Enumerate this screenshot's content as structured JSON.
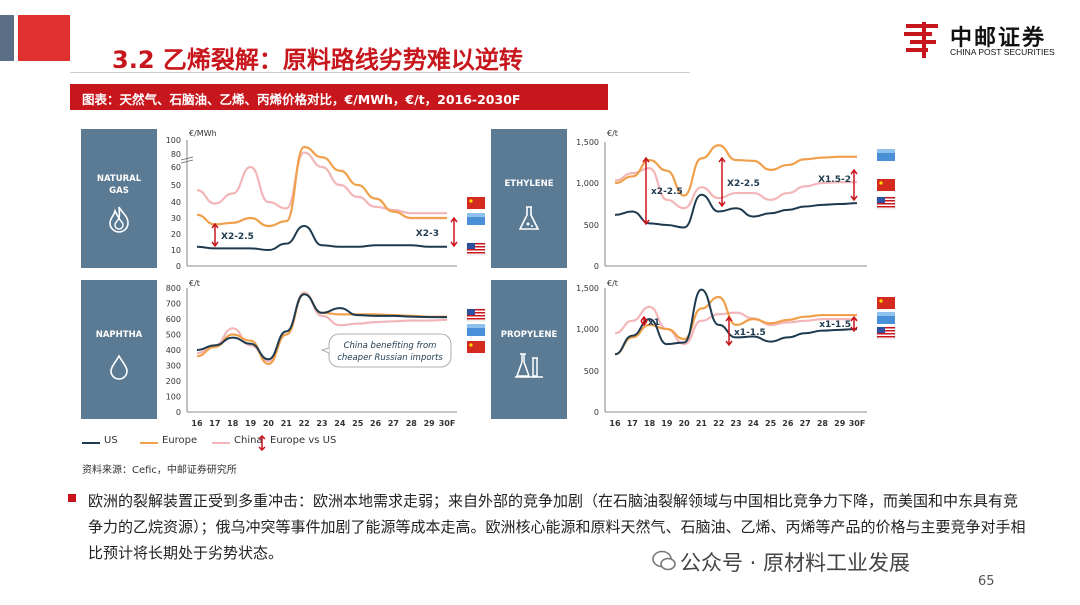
{
  "header": {
    "title": "3.2 乙烯裂解：原料路线劣势难以逆转",
    "logo_cn": "中邮证券",
    "logo_en": "CHINA POST SECURITIES"
  },
  "caption": "图表：天然气、石脑油、乙烯、丙烯价格对比，€/MWh，€/t，2016-2030F",
  "colors": {
    "us": "#1e3a4f",
    "europe": "#f0a04b",
    "china": "#f2b6b8",
    "accent_red": "#c8161d",
    "panel": "#5b7a94"
  },
  "legend": {
    "us": "US",
    "europe": "Europe",
    "china": "China",
    "range": "Europe vs US"
  },
  "panels": {
    "gas": {
      "label1": "NATURAL",
      "label2": "GAS",
      "icon": "flame-icon"
    },
    "ethylene": {
      "label": "ETHYLENE",
      "icon": "flask-icon"
    },
    "naphtha": {
      "label": "NAPHTHA",
      "icon": "droplet-icon"
    },
    "propylene": {
      "label": "PROPYLENE",
      "icon": "lab-flasks-icon"
    }
  },
  "chart_data": [
    {
      "type": "line",
      "title": "NATURAL GAS",
      "ylabel": "€/MWh",
      "yticks": [
        "0",
        "10",
        "20",
        "30",
        "40",
        "50",
        "60",
        "80",
        "100"
      ],
      "x": [
        16,
        17,
        18,
        19,
        20,
        21,
        22,
        23,
        24,
        25,
        26,
        27,
        28,
        29,
        30
      ],
      "series": [
        {
          "name": "US",
          "values": [
            12,
            11,
            11,
            11,
            10,
            14,
            25,
            13,
            12,
            12,
            13,
            13,
            13,
            12,
            12
          ]
        },
        {
          "name": "Europe",
          "values": [
            32,
            26,
            27,
            30,
            25,
            28,
            90,
            75,
            58,
            50,
            42,
            34,
            30,
            30,
            30
          ]
        },
        {
          "name": "China",
          "values": [
            47,
            39,
            45,
            60,
            40,
            36,
            82,
            60,
            50,
            43,
            37,
            35,
            33,
            33,
            33
          ]
        }
      ],
      "annotations": [
        "X2-2.5",
        "X2-3"
      ],
      "ylim": [
        0,
        100
      ]
    },
    {
      "type": "line",
      "title": "ETHYLENE",
      "ylabel": "€/t",
      "yticks": [
        "0",
        "500",
        "1,000",
        "1,500"
      ],
      "x": [
        16,
        17,
        18,
        19,
        20,
        21,
        22,
        23,
        24,
        25,
        26,
        27,
        28,
        29,
        30
      ],
      "series": [
        {
          "name": "US",
          "values": [
            620,
            660,
            520,
            500,
            470,
            860,
            660,
            700,
            600,
            640,
            680,
            720,
            740,
            750,
            760
          ]
        },
        {
          "name": "Europe",
          "values": [
            1000,
            1080,
            1280,
            1150,
            850,
            1300,
            1460,
            1280,
            1270,
            1160,
            1220,
            1290,
            1310,
            1320,
            1320
          ]
        },
        {
          "name": "China",
          "values": [
            1030,
            1120,
            1180,
            800,
            700,
            950,
            820,
            880,
            880,
            800,
            880,
            960,
            1000,
            1010,
            1010
          ]
        }
      ],
      "annotations": [
        "x2-2.5",
        "X2-2.5",
        "X1.5-2"
      ],
      "ylim": [
        0,
        1500
      ]
    },
    {
      "type": "line",
      "title": "NAPHTHA",
      "ylabel": "€/t",
      "yticks": [
        "0",
        "100",
        "200",
        "300",
        "400",
        "500",
        "600",
        "700",
        "800"
      ],
      "x": [
        16,
        17,
        18,
        19,
        20,
        21,
        22,
        23,
        24,
        25,
        26,
        27,
        28,
        29,
        30
      ],
      "series": [
        {
          "name": "US",
          "values": [
            400,
            430,
            480,
            440,
            340,
            520,
            760,
            640,
            670,
            625,
            620,
            620,
            615,
            612,
            612
          ]
        },
        {
          "name": "Europe",
          "values": [
            360,
            420,
            500,
            460,
            310,
            500,
            760,
            640,
            630,
            630,
            630,
            625,
            620,
            615,
            615
          ]
        },
        {
          "name": "China",
          "values": [
            380,
            430,
            540,
            430,
            330,
            500,
            770,
            620,
            560,
            570,
            580,
            585,
            590,
            590,
            595
          ]
        }
      ],
      "annotations": [
        "China benefiting from cheaper Russian imports"
      ],
      "ylim": [
        0,
        800
      ]
    },
    {
      "type": "line",
      "title": "PROPYLENE",
      "ylabel": "€/t",
      "yticks": [
        "0",
        "500",
        "1,000",
        "1,500"
      ],
      "x": [
        16,
        17,
        18,
        19,
        20,
        21,
        22,
        23,
        24,
        25,
        26,
        27,
        28,
        29,
        30
      ],
      "series": [
        {
          "name": "US",
          "values": [
            700,
            920,
            1120,
            820,
            840,
            1480,
            1050,
            900,
            910,
            850,
            900,
            950,
            980,
            990,
            1000
          ]
        },
        {
          "name": "Europe",
          "values": [
            700,
            900,
            1050,
            1000,
            880,
            1250,
            1390,
            1050,
            1120,
            1070,
            1110,
            1150,
            1170,
            1170,
            1170
          ]
        },
        {
          "name": "China",
          "values": [
            950,
            1100,
            1270,
            1000,
            820,
            1100,
            1180,
            1200,
            1130,
            1050,
            1080,
            1100,
            1120,
            1120,
            1120
          ]
        }
      ],
      "annotations": [
        "x1",
        "x1-1.5",
        "x1-1.5"
      ],
      "ylim": [
        0,
        1500
      ]
    }
  ],
  "x_ticks": [
    "16",
    "17",
    "18",
    "19",
    "20",
    "21",
    "22",
    "23",
    "24",
    "25",
    "26",
    "27",
    "28",
    "29",
    "30F"
  ],
  "source": "资料来源：Cefic，中邮证券研究所",
  "body": "欧洲的裂解装置正受到多重冲击：欧洲本地需求走弱；来自外部的竞争加剧（在石脑油裂解领域与中国相比竞争力下降，而美国和中东具有竞争力的乙烷资源）；俄乌冲突等事件加剧了能源等成本走高。欧洲核心能源和原料天然气、石脑油、乙烯、丙烯等产品的价格与主要竞争对手相比预计将长期处于劣势状态。",
  "watermark": "公众号 · 原材料工业发展",
  "page_number": "65"
}
